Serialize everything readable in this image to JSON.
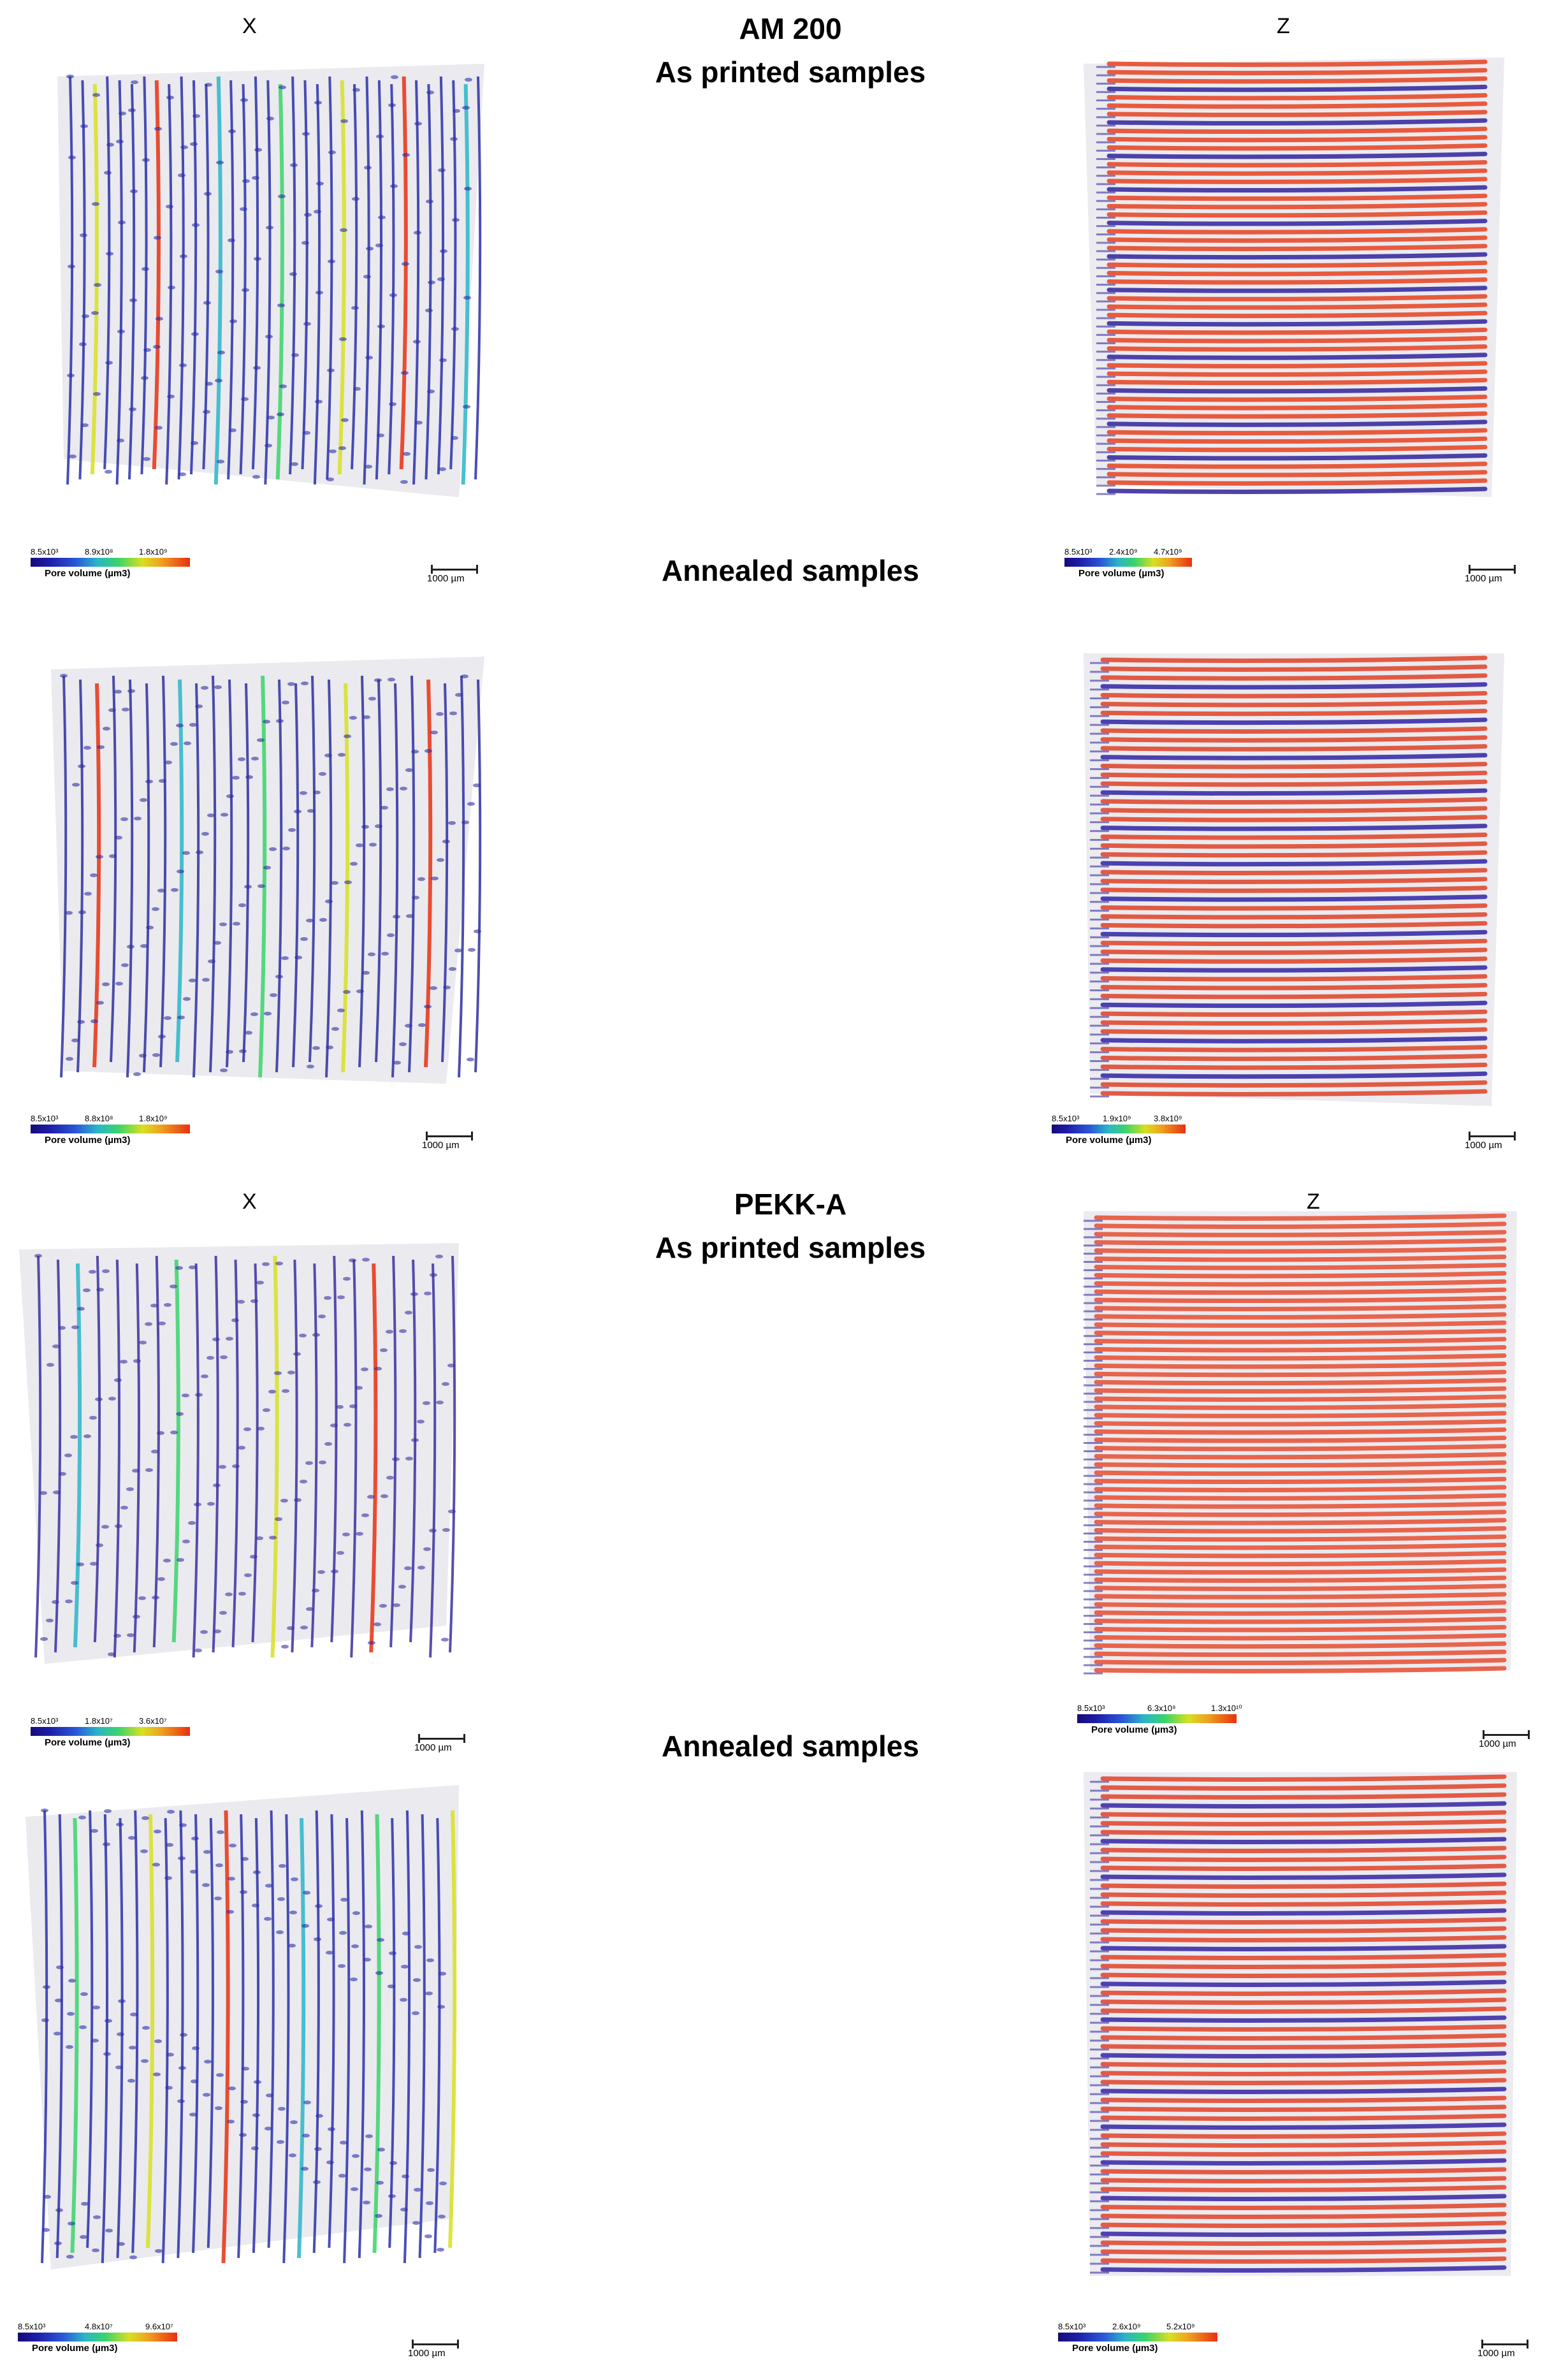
{
  "groups": [
    {
      "x_axis_label": "X",
      "z_axis_label": "Z",
      "material": "AM 200",
      "printed_heading": "As printed samples",
      "annealed_heading": "Annealed samples"
    },
    {
      "x_axis_label": "X",
      "z_axis_label": "Z",
      "material": "PEKK-A",
      "printed_heading": "As printed samples",
      "annealed_heading": "Annealed samples"
    }
  ],
  "panels": [
    {
      "legend": {
        "t1": "8.5x10³",
        "t2": "8.9x10⁸",
        "t3": "1.8x10⁹",
        "title": "Pore volume (µm3)"
      },
      "scale": "1000 µm"
    },
    {
      "legend": {
        "t1": "8.5x10³",
        "t2": "2.4x10⁹",
        "t3": "4.7x10⁹",
        "title": "Pore volume (µm3)"
      },
      "scale": "1000 µm"
    },
    {
      "legend": {
        "t1": "8.5x10³",
        "t2": "8.8x10⁸",
        "t3": "1.8x10⁹",
        "title": "Pore volume (µm3)"
      },
      "scale": "1000 µm"
    },
    {
      "legend": {
        "t1": "8.5x10³",
        "t2": "1.9x10⁹",
        "t3": "3.8x10⁹",
        "title": "Pore volume (µm3)"
      },
      "scale": "1000 µm"
    },
    {
      "legend": {
        "t1": "8.5x10³",
        "t2": "1.8x10⁷",
        "t3": "3.6x10⁷",
        "title": "Pore volume (µm3)"
      },
      "scale": "1000 µm"
    },
    {
      "legend": {
        "t1": "8.5x10³",
        "t2": "6.3x10⁹",
        "t3": "1.3x10¹⁰",
        "title": "Pore volume (µm3)"
      },
      "scale": "1000 µm"
    },
    {
      "legend": {
        "t1": "8.5x10³",
        "t2": "4.8x10⁷",
        "t3": "9.6x10⁷",
        "title": "Pore volume (µm3)"
      },
      "scale": "1000 µm"
    },
    {
      "legend": {
        "t1": "8.5x10³",
        "t2": "2.6x10⁹",
        "t3": "5.2x10⁹",
        "title": "Pore volume (µm3)"
      },
      "scale": "1000 µm"
    }
  ],
  "colors": {
    "low": "#1d1ea8",
    "mid": "#3ad46a",
    "high": "#e83010"
  }
}
